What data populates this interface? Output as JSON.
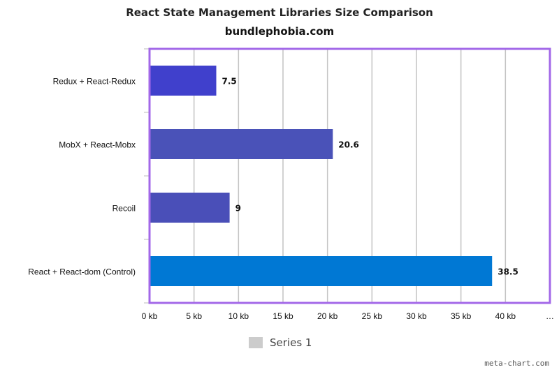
{
  "chart_data": {
    "type": "bar",
    "orientation": "horizontal",
    "title": "React State Management Libraries Size Comparison",
    "subtitle": "bundlephobia.com",
    "categories": [
      "Redux + React-Redux",
      "MobX + React-Mobx",
      "Recoil",
      "React + React-dom (Control)"
    ],
    "series": [
      {
        "name": "Series 1",
        "values": [
          7.5,
          20.6,
          9,
          38.5
        ]
      }
    ],
    "data_labels": [
      "7.5",
      "20.6",
      "9",
      "38.5"
    ],
    "bar_colors": [
      "#4040cc",
      "#4a52b8",
      "#4a4fb8",
      "#0078d4"
    ],
    "x_ticks": [
      "0 kb",
      "5 kb",
      "10 kb",
      "15 kb",
      "20 kb",
      "25 kb",
      "30 kb",
      "35 kb",
      "40 kb",
      "…"
    ],
    "xlim": [
      0,
      45
    ],
    "grid": true,
    "legend_position": "bottom",
    "frame_color": "#a368e8"
  },
  "legend": {
    "label": "Series 1",
    "swatch_color": "#cccccc"
  },
  "watermark": "meta-chart.com"
}
